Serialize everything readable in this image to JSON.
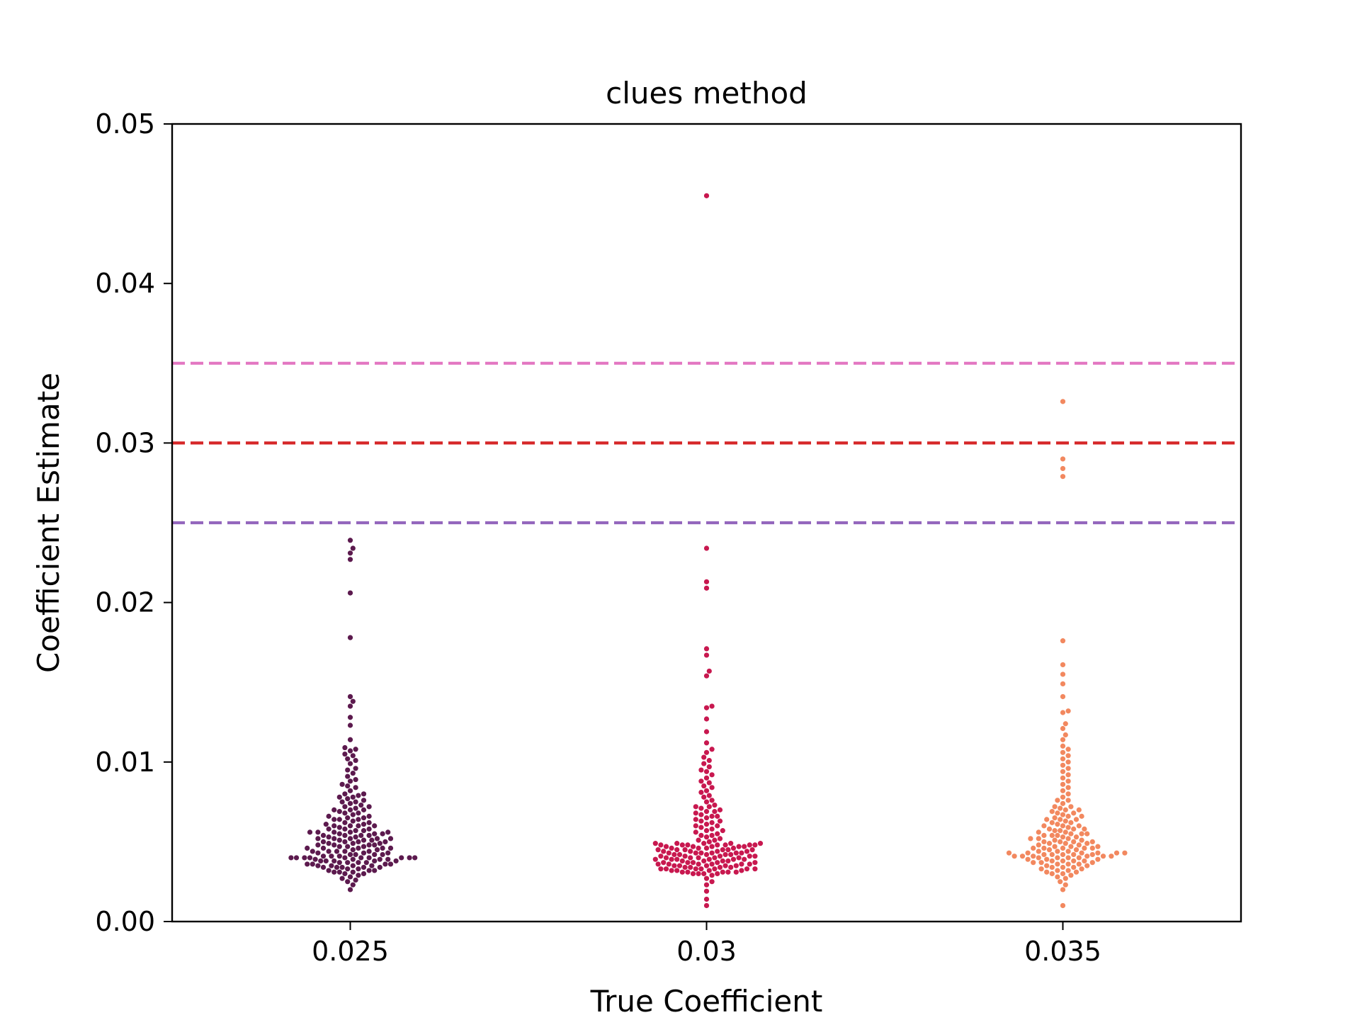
{
  "chart_data": {
    "type": "scatter",
    "subtype": "swarm",
    "title": "clues method",
    "xlabel": "True Coefficient",
    "ylabel": "Coefficient Estimate",
    "ylim": [
      0,
      0.05
    ],
    "yticks": [
      "0.00",
      "0.01",
      "0.02",
      "0.03",
      "0.04",
      "0.05"
    ],
    "categories": [
      "0.025",
      "0.03",
      "0.035"
    ],
    "grid": false,
    "reference_lines": [
      {
        "y": 0.035,
        "color": "#e377c2",
        "style": "dashed"
      },
      {
        "y": 0.03,
        "color": "#d62728",
        "style": "dashed"
      },
      {
        "y": 0.025,
        "color": "#9467bd",
        "style": "dashed"
      }
    ],
    "series": [
      {
        "category": "0.025",
        "color": "#5c1a4e",
        "values": [
          0.0239,
          0.0234,
          0.0231,
          0.0227,
          0.0206,
          0.0178,
          0.0141,
          0.0138,
          0.0135,
          0.0128,
          0.0123,
          0.0114,
          0.0109,
          0.0108,
          0.0107,
          0.0105,
          0.0104,
          0.0102,
          0.0101,
          0.0099,
          0.0096,
          0.0095,
          0.0093,
          0.0091,
          0.0089,
          0.0088,
          0.0086,
          0.0085,
          0.0084,
          0.0082,
          0.008,
          0.008,
          0.0079,
          0.0078,
          0.0077,
          0.0076,
          0.0075,
          0.0074,
          0.0073,
          0.0072,
          0.0071,
          0.007,
          0.0069,
          0.0068,
          0.0067,
          0.0066,
          0.0065,
          0.0064,
          0.0063,
          0.0062,
          0.0061,
          0.006,
          0.0059,
          0.0058,
          0.0057,
          0.0056,
          0.0055,
          0.0054,
          0.0053,
          0.0052,
          0.0051,
          0.005,
          0.0049,
          0.0048,
          0.0047,
          0.0046,
          0.0045,
          0.0044,
          0.0043,
          0.0042,
          0.0041,
          0.004,
          0.004,
          0.0039,
          0.0038,
          0.0037,
          0.0036,
          0.0035,
          0.0034,
          0.0033,
          0.0032,
          0.0031,
          0.003,
          0.0029,
          0.0028,
          0.0027,
          0.0026,
          0.0025,
          0.0023,
          0.002,
          0.0056,
          0.0055,
          0.0054,
          0.0053,
          0.0052,
          0.0051,
          0.005,
          0.0049,
          0.0048,
          0.0047,
          0.0046,
          0.0045,
          0.0044,
          0.0043,
          0.0042,
          0.0041,
          0.004,
          0.004,
          0.0039,
          0.0038,
          0.0037,
          0.0036,
          0.0035,
          0.0034,
          0.0033,
          0.0032,
          0.0031,
          0.003,
          0.006,
          0.0058,
          0.0056,
          0.0054,
          0.0052,
          0.005,
          0.0048,
          0.0046,
          0.0044,
          0.0042,
          0.004,
          0.004,
          0.0039,
          0.0038,
          0.0037,
          0.0036,
          0.0035,
          0.0034,
          0.0066,
          0.0064,
          0.0062,
          0.006,
          0.0058,
          0.0056,
          0.0054,
          0.0052,
          0.005,
          0.0048,
          0.0046,
          0.0044,
          0.0042,
          0.004,
          0.004,
          0.0038,
          0.0036,
          0.0034,
          0.0032,
          0.0072,
          0.007,
          0.0068,
          0.0064,
          0.006,
          0.0057,
          0.0055,
          0.0052,
          0.0049,
          0.0046,
          0.0043,
          0.004,
          0.0039,
          0.0037,
          0.0034,
          0.0031,
          0.0078,
          0.0075,
          0.007,
          0.0065,
          0.0061,
          0.0056,
          0.0051,
          0.0047,
          0.0044,
          0.0041,
          0.004,
          0.0038,
          0.0035
        ]
      },
      {
        "category": "0.03",
        "color": "#c8184f",
        "values": [
          0.0455,
          0.0234,
          0.0213,
          0.0209,
          0.0171,
          0.0167,
          0.0157,
          0.0154,
          0.0135,
          0.0134,
          0.0127,
          0.0119,
          0.0112,
          0.0108,
          0.0106,
          0.0103,
          0.0101,
          0.0099,
          0.0097,
          0.0095,
          0.0094,
          0.0092,
          0.009,
          0.0088,
          0.0087,
          0.0085,
          0.0084,
          0.0082,
          0.0081,
          0.0079,
          0.0078,
          0.0076,
          0.0075,
          0.0073,
          0.0072,
          0.0071,
          0.007,
          0.0069,
          0.0068,
          0.0067,
          0.0066,
          0.0065,
          0.0064,
          0.0063,
          0.0062,
          0.0061,
          0.006,
          0.0059,
          0.0058,
          0.0057,
          0.0056,
          0.0055,
          0.0054,
          0.0053,
          0.0052,
          0.0051,
          0.005,
          0.0049,
          0.0048,
          0.0047,
          0.0046,
          0.0045,
          0.0044,
          0.0043,
          0.0042,
          0.0041,
          0.004,
          0.0039,
          0.0038,
          0.0037,
          0.0036,
          0.0035,
          0.0034,
          0.0033,
          0.0032,
          0.0031,
          0.003,
          0.0029,
          0.0027,
          0.0025,
          0.0023,
          0.0019,
          0.0014,
          0.001,
          0.0049,
          0.0048,
          0.0047,
          0.0046,
          0.0045,
          0.0044,
          0.0043,
          0.0042,
          0.0041,
          0.004,
          0.0039,
          0.0038,
          0.0037,
          0.0036,
          0.0035,
          0.0034,
          0.0033,
          0.0032,
          0.0031,
          0.003,
          0.0049,
          0.0048,
          0.0047,
          0.0046,
          0.0045,
          0.0044,
          0.0043,
          0.0042,
          0.0041,
          0.004,
          0.0039,
          0.0038,
          0.0037,
          0.0036,
          0.0035,
          0.0034,
          0.0033,
          0.0032,
          0.0031,
          0.003,
          0.0072,
          0.0069,
          0.0066,
          0.0063,
          0.006,
          0.0057,
          0.0054,
          0.0051,
          0.0048,
          0.0045,
          0.0042,
          0.0039,
          0.0036,
          0.0033,
          0.003,
          0.0049,
          0.0047,
          0.0045,
          0.0043,
          0.0041,
          0.0039,
          0.0037,
          0.0035,
          0.0033,
          0.0031,
          0.0049,
          0.0046,
          0.0043,
          0.004,
          0.0037,
          0.0034,
          0.0031,
          0.0048,
          0.0045,
          0.0042,
          0.0039,
          0.0036,
          0.0033,
          0.0048,
          0.0044,
          0.004,
          0.0036,
          0.0032,
          0.0048,
          0.0043,
          0.0038,
          0.0033,
          0.0047,
          0.0041,
          0.0035
        ]
      },
      {
        "category": "0.035",
        "color": "#f2885f",
        "values": [
          0.0326,
          0.029,
          0.0284,
          0.0279,
          0.0176,
          0.0161,
          0.0155,
          0.0149,
          0.0141,
          0.0132,
          0.0131,
          0.0124,
          0.0121,
          0.0117,
          0.0114,
          0.011,
          0.0108,
          0.0106,
          0.0104,
          0.0102,
          0.01,
          0.0098,
          0.0096,
          0.0094,
          0.0092,
          0.009,
          0.0088,
          0.0086,
          0.0084,
          0.0082,
          0.008,
          0.0078,
          0.0076,
          0.0074,
          0.0072,
          0.0071,
          0.007,
          0.0069,
          0.0068,
          0.0067,
          0.0066,
          0.0065,
          0.0064,
          0.0063,
          0.0062,
          0.0061,
          0.006,
          0.0059,
          0.0058,
          0.0057,
          0.0056,
          0.0055,
          0.0054,
          0.0053,
          0.0052,
          0.0051,
          0.005,
          0.0049,
          0.0048,
          0.0047,
          0.0046,
          0.0045,
          0.0044,
          0.0043,
          0.0042,
          0.0041,
          0.004,
          0.0039,
          0.0038,
          0.0037,
          0.0036,
          0.0035,
          0.0034,
          0.0033,
          0.0032,
          0.0031,
          0.003,
          0.0029,
          0.0028,
          0.0027,
          0.0025,
          0.0023,
          0.002,
          0.001,
          0.0076,
          0.0072,
          0.0068,
          0.0064,
          0.006,
          0.0057,
          0.0054,
          0.0051,
          0.0048,
          0.0045,
          0.0042,
          0.004,
          0.0038,
          0.0036,
          0.0034,
          0.0032,
          0.003,
          0.007,
          0.0066,
          0.0062,
          0.0058,
          0.0055,
          0.0052,
          0.0049,
          0.0046,
          0.0043,
          0.0041,
          0.0039,
          0.0037,
          0.0035,
          0.0033,
          0.0031,
          0.0064,
          0.006,
          0.0056,
          0.0053,
          0.005,
          0.0047,
          0.0044,
          0.0042,
          0.004,
          0.0038,
          0.0036,
          0.0034,
          0.0058,
          0.0055,
          0.0052,
          0.0049,
          0.0046,
          0.0043,
          0.0041,
          0.0039,
          0.0037,
          0.0054,
          0.005,
          0.0047,
          0.0044,
          0.0042,
          0.004,
          0.0038,
          0.005,
          0.0046,
          0.0043,
          0.0041,
          0.0046,
          0.0043,
          0.0041,
          0.0043,
          0.0041,
          0.0042
        ]
      }
    ]
  }
}
